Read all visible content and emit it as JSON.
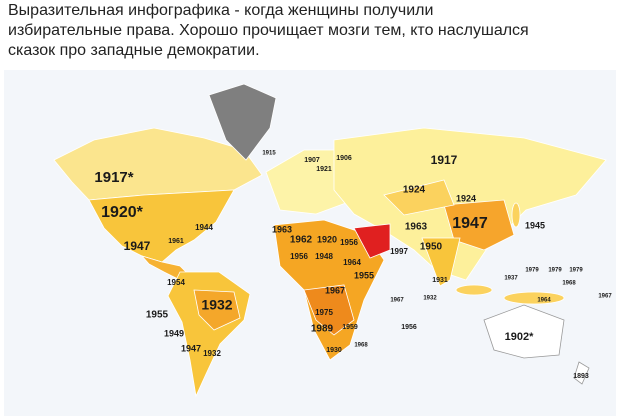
{
  "header": {
    "lines": [
      "Выразительная инфографика  -  когда женщины получили",
      "избирательные права. Хорошо прочищает мозги тем, кто наслушался",
      "сказок про западные демократии."
    ]
  },
  "map": {
    "labels": [
      "1917*",
      "1920*",
      "1944",
      "1947",
      "1961",
      "1954",
      "1932",
      "1955",
      "1949",
      "1947",
      "1932",
      "1915",
      "1907",
      "1906",
      "1921",
      "1917",
      "1924",
      "1924",
      "1963",
      "1962",
      "1920",
      "1956",
      "1963",
      "1947",
      "1945",
      "1950",
      "1956",
      "1948",
      "1964",
      "1955",
      "1967",
      "1997",
      "1931",
      "1975",
      "1989",
      "1959",
      "1956",
      "1967",
      "1932",
      "1930",
      "1968",
      "1902*",
      "1893",
      "1937",
      "1968",
      "1979",
      "1979",
      "1979",
      "1967",
      "1964"
    ]
  }
}
